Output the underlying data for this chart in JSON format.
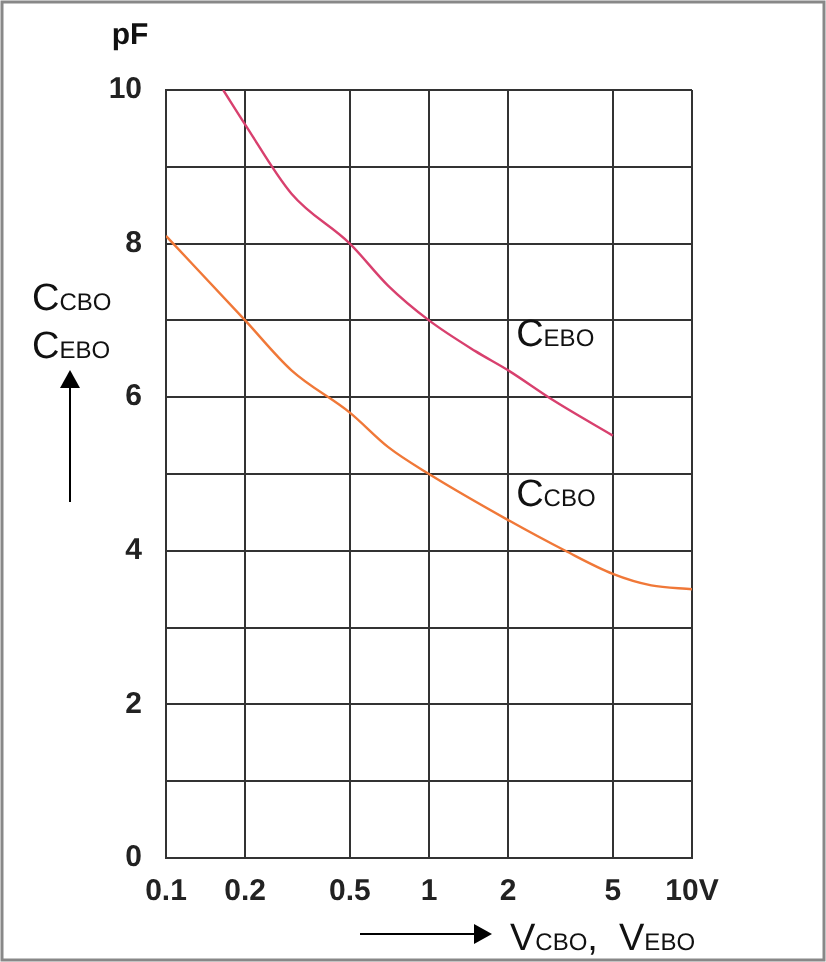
{
  "chart_data": {
    "type": "line",
    "xlabel": "V$_{CBO}$,  V$_{EBO}$",
    "ylabel": "C$_{CBO}$ C$_{EBO}$",
    "annotations": [
      "pF"
    ],
    "log": "x",
    "xlim": [
      0.1,
      10
    ],
    "xticks": [
      0.1,
      0.2,
      0.5,
      1,
      2,
      5,
      {
        "value": 10,
        "label": "10V"
      }
    ],
    "ylim": [
      0,
      10
    ],
    "yticks": [
      0,
      {
        "value": 1,
        "label": null
      },
      2,
      {
        "value": 3,
        "label": null
      },
      4,
      {
        "value": 5,
        "label": null
      },
      6,
      {
        "value": 7,
        "label": null
      },
      8,
      {
        "value": 9,
        "label": null
      },
      10
    ],
    "grid": true,
    "legend": false,
    "marker": "none",
    "series": [
      {
        "name": "C$_{EBO}$",
        "color": "#d8406e",
        "x": [
          0.165,
          0.2,
          0.3,
          0.5,
          0.7,
          1,
          1.5,
          2,
          3,
          5
        ],
        "values": [
          10,
          9.55,
          8.65,
          8.0,
          7.45,
          7.0,
          6.6,
          6.35,
          5.95,
          5.5
        ]
      },
      {
        "name": "C$_{CBO}$",
        "color": "#f07838",
        "x": [
          0.1,
          0.2,
          0.3,
          0.5,
          0.7,
          1,
          2,
          3.3,
          5,
          7,
          10
        ],
        "values": [
          8.1,
          7.0,
          6.35,
          5.8,
          5.35,
          5.0,
          4.4,
          4.0,
          3.7,
          3.55,
          3.5
        ]
      }
    ]
  }
}
